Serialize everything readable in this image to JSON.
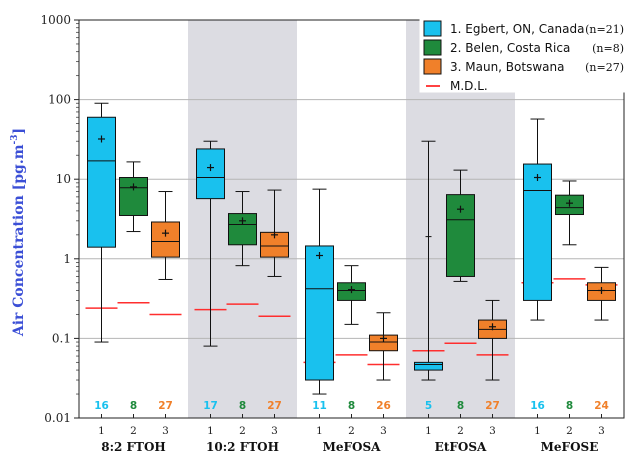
{
  "chart_data": {
    "type": "box",
    "ylabel": "Air Concentration [pg.m-3]",
    "ylabel_main": "Air Concentration [pg.m",
    "ylabel_sup": "-3",
    "ylabel_close": "]",
    "yscale": "log",
    "ylim": [
      0.01,
      1000
    ],
    "yticks": [
      "0.01",
      "0.1",
      "1",
      "10",
      "100",
      "1000"
    ],
    "grid": "horizontal gridlines at decades",
    "shaded_groups": [
      "10:2 FTOH",
      "EtFOSA"
    ],
    "legend": {
      "position": "top-right",
      "entries": [
        {
          "label": "1. Egbert, ON, Canada",
          "n": "(n=21)",
          "color": "#19c1ee"
        },
        {
          "label": "2. Belen, Costa Rica",
          "n": "(n=8)",
          "color": "#1f8a3c"
        },
        {
          "label": "3. Maun, Botswana",
          "n": "(n=27)",
          "color": "#f0802a"
        },
        {
          "label": "M.D.L.",
          "n": "",
          "color": "#ff2e2e"
        }
      ]
    },
    "series_colors": [
      "#19c1ee",
      "#1f8a3c",
      "#f0802a"
    ],
    "mdl_color": "#ff2e2e",
    "groups": [
      {
        "name": "8:2 FTOH",
        "boxes": [
          {
            "site": "1",
            "whisker_low": 0.09,
            "q1": 1.4,
            "median": 17,
            "q3": 60,
            "whisker_high": 90,
            "mean": 32,
            "n": "16",
            "mdl": 0.24
          },
          {
            "site": "2",
            "whisker_low": 2.2,
            "q1": 3.5,
            "median": 7.8,
            "q3": 10.5,
            "whisker_high": 16.5,
            "mean": 8.0,
            "n": "8",
            "mdl": 0.28
          },
          {
            "site": "3",
            "whisker_low": 0.55,
            "q1": 1.05,
            "median": 1.65,
            "q3": 2.9,
            "whisker_high": 7.0,
            "mean": 2.1,
            "n": "27",
            "mdl": 0.2
          }
        ]
      },
      {
        "name": "10:2 FTOH",
        "boxes": [
          {
            "site": "1",
            "whisker_low": 0.08,
            "q1": 5.7,
            "median": 10.5,
            "q3": 24,
            "whisker_high": 30,
            "mean": 14,
            "n": "17",
            "mdl": 0.23
          },
          {
            "site": "2",
            "whisker_low": 0.82,
            "q1": 1.5,
            "median": 2.7,
            "q3": 3.7,
            "whisker_high": 7.0,
            "mean": 3.0,
            "n": "8",
            "mdl": 0.27
          },
          {
            "site": "3",
            "whisker_low": 0.6,
            "q1": 1.05,
            "median": 1.45,
            "q3": 2.15,
            "whisker_high": 7.3,
            "mean": 2.0,
            "n": "27",
            "mdl": 0.19
          }
        ]
      },
      {
        "name": "MeFOSA",
        "boxes": [
          {
            "site": "1",
            "whisker_low": 0.02,
            "q1": 0.03,
            "median": 0.42,
            "q3": 1.45,
            "whisker_high": 7.5,
            "mean": 1.1,
            "n": "11",
            "mdl": 0.05
          },
          {
            "site": "2",
            "whisker_low": 0.15,
            "q1": 0.3,
            "median": 0.4,
            "q3": 0.5,
            "whisker_high": 0.82,
            "mean": 0.41,
            "n": "8",
            "mdl": 0.062
          },
          {
            "site": "3",
            "whisker_low": 0.03,
            "q1": 0.07,
            "median": 0.09,
            "q3": 0.11,
            "whisker_high": 0.21,
            "mean": 0.1,
            "n": "26",
            "mdl": 0.047
          }
        ]
      },
      {
        "name": "EtFOSA",
        "boxes": [
          {
            "site": "1",
            "whisker_low": 0.03,
            "q1": 0.04,
            "median": 0.047,
            "q3": 0.05,
            "whisker_high": 30,
            "mean": null,
            "n": "5",
            "mdl": 0.07,
            "whisker_cap_low": 1.9
          },
          {
            "site": "2",
            "whisker_low": 0.52,
            "q1": 0.6,
            "median": 3.1,
            "q3": 6.4,
            "whisker_high": 13,
            "mean": 4.2,
            "n": "8",
            "mdl": 0.087
          },
          {
            "site": "3",
            "whisker_low": 0.03,
            "q1": 0.1,
            "median": 0.13,
            "q3": 0.17,
            "whisker_high": 0.3,
            "mean": 0.14,
            "n": "27",
            "mdl": 0.062
          }
        ]
      },
      {
        "name": "MeFOSE",
        "boxes": [
          {
            "site": "1",
            "whisker_low": 0.17,
            "q1": 0.3,
            "median": 7.2,
            "q3": 15.5,
            "whisker_high": 57,
            "mean": 10.5,
            "n": "16",
            "mdl": 0.5
          },
          {
            "site": "2",
            "whisker_low": 1.5,
            "q1": 3.6,
            "median": 4.4,
            "q3": 6.3,
            "whisker_high": 9.5,
            "mean": 5.0,
            "n": "8",
            "mdl": 0.56
          },
          {
            "site": "3",
            "whisker_low": 0.17,
            "q1": 0.3,
            "median": 0.4,
            "q3": 0.5,
            "whisker_high": 0.78,
            "mean": 0.4,
            "n": "24",
            "mdl": 0.47
          }
        ]
      }
    ]
  }
}
